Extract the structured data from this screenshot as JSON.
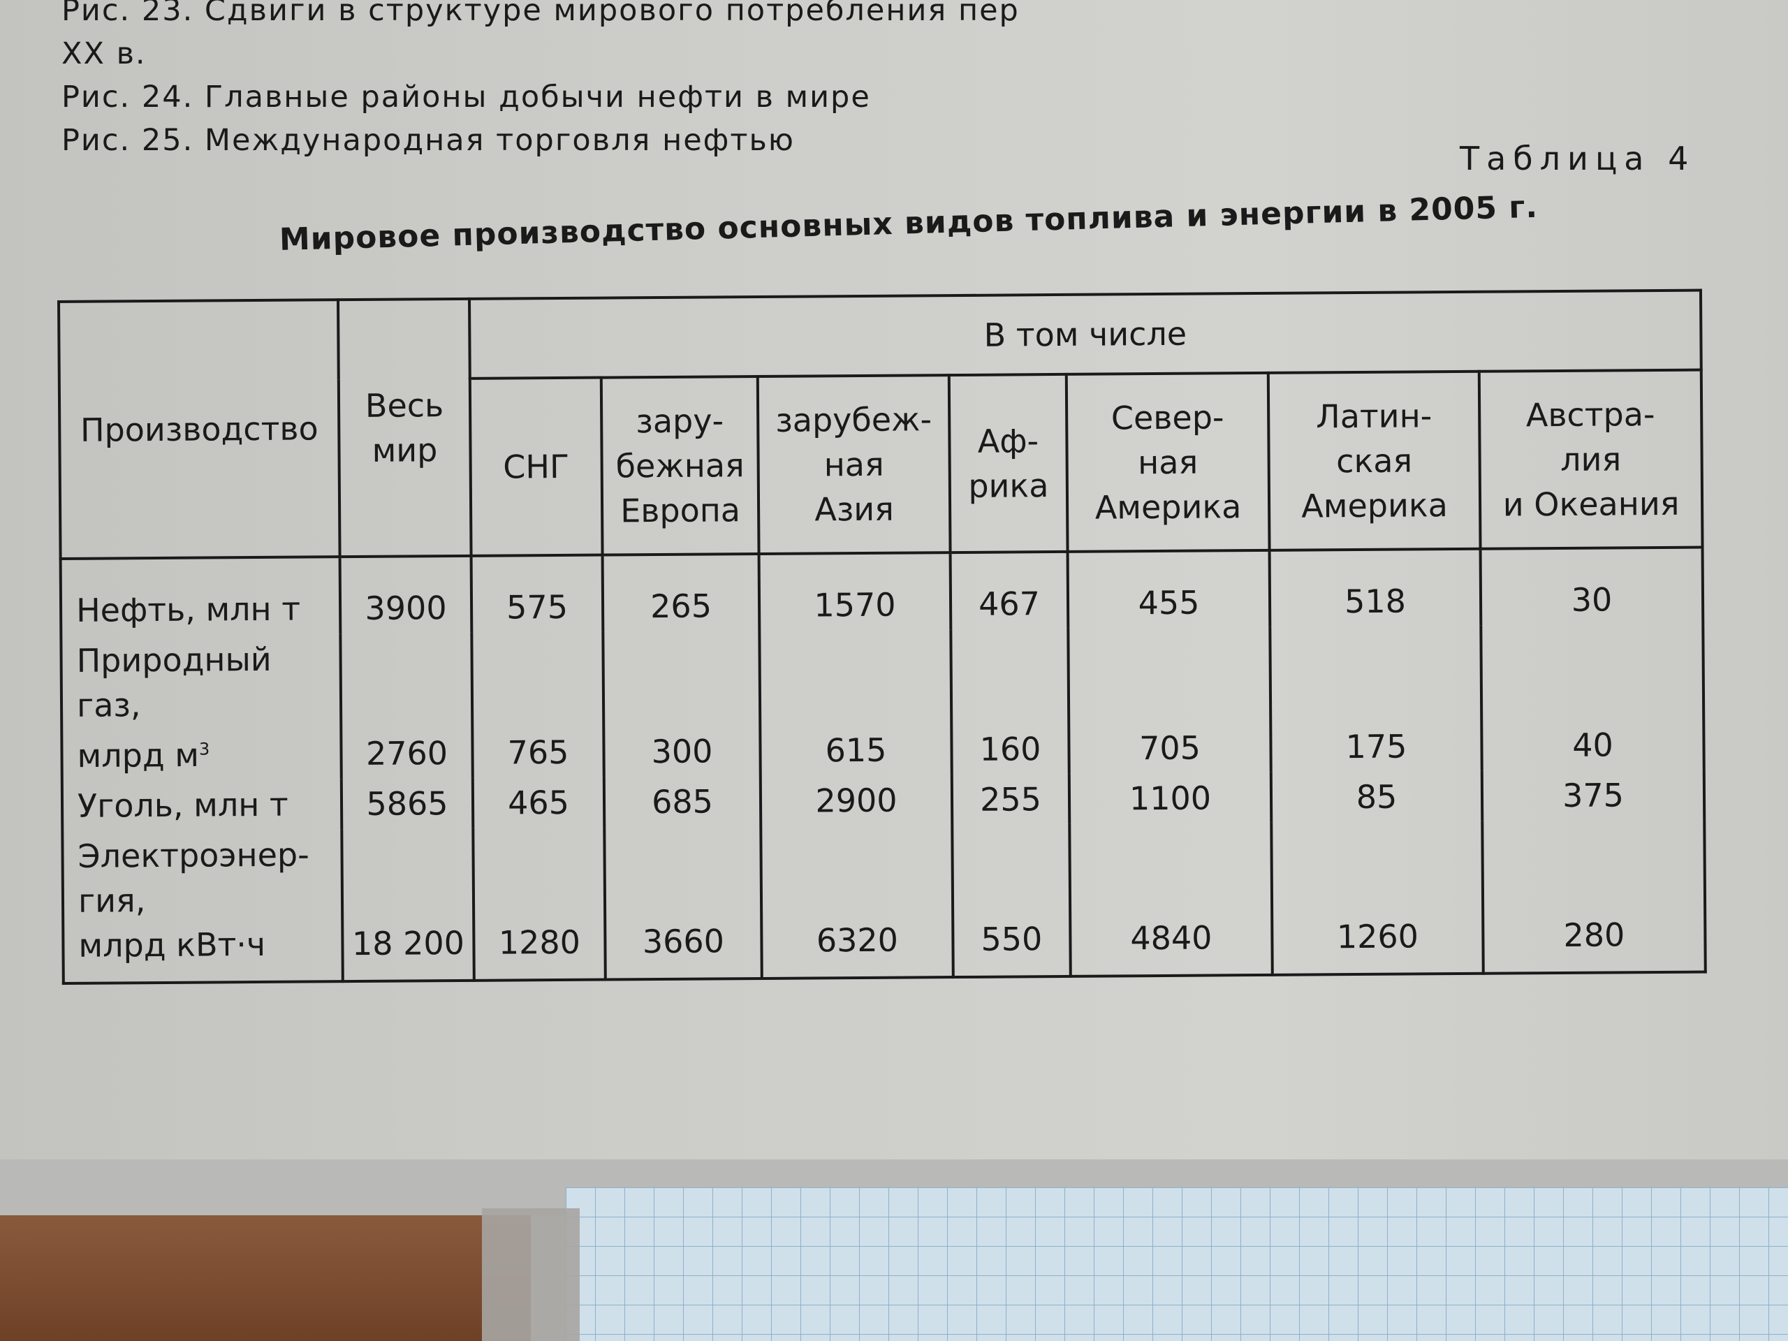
{
  "captions": [
    "Рис. 23. Сдвиги в структуре мирового потребления пер",
    "XX в.",
    "Рис. 24. Главные районы добычи нефти в мире",
    "Рис. 25. Международная торговля нефтью"
  ],
  "table_label": "Таблица 4",
  "table_title": "Мировое производство основных видов топлива и энергии в 2005 г.",
  "headers": {
    "production": "Производство",
    "world": [
      "Весь",
      "мир"
    ],
    "including": "В том числе",
    "regions": [
      [
        "СНГ"
      ],
      [
        "зару-",
        "бежная",
        "Европа"
      ],
      [
        "зарубеж-",
        "ная",
        "Азия"
      ],
      [
        "Аф-",
        "рика"
      ],
      [
        "Север-",
        "ная",
        "Америка"
      ],
      [
        "Латин-",
        "ская",
        "Америка"
      ],
      [
        "Австра-",
        "лия",
        "и Океания"
      ]
    ]
  },
  "rows": [
    {
      "name": [
        "Нефть, млн т"
      ],
      "values": [
        "3900",
        "575",
        "265",
        "1570",
        "467",
        "455",
        "518",
        "30"
      ]
    },
    {
      "name": [
        "Природный газ,",
        "млрд м"
      ],
      "sup": "3",
      "values": [
        "2760",
        "765",
        "300",
        "615",
        "160",
        "705",
        "175",
        "40"
      ]
    },
    {
      "name": [
        "Уголь, млн т"
      ],
      "values": [
        "5865",
        "465",
        "685",
        "2900",
        "255",
        "1100",
        "85",
        "375"
      ]
    },
    {
      "name": [
        "Электроэнер-",
        "гия,",
        "млрд кВт·ч"
      ],
      "values": [
        "18 200",
        "1280",
        "3660",
        "6320",
        "550",
        "4840",
        "1260",
        "280"
      ]
    }
  ]
}
